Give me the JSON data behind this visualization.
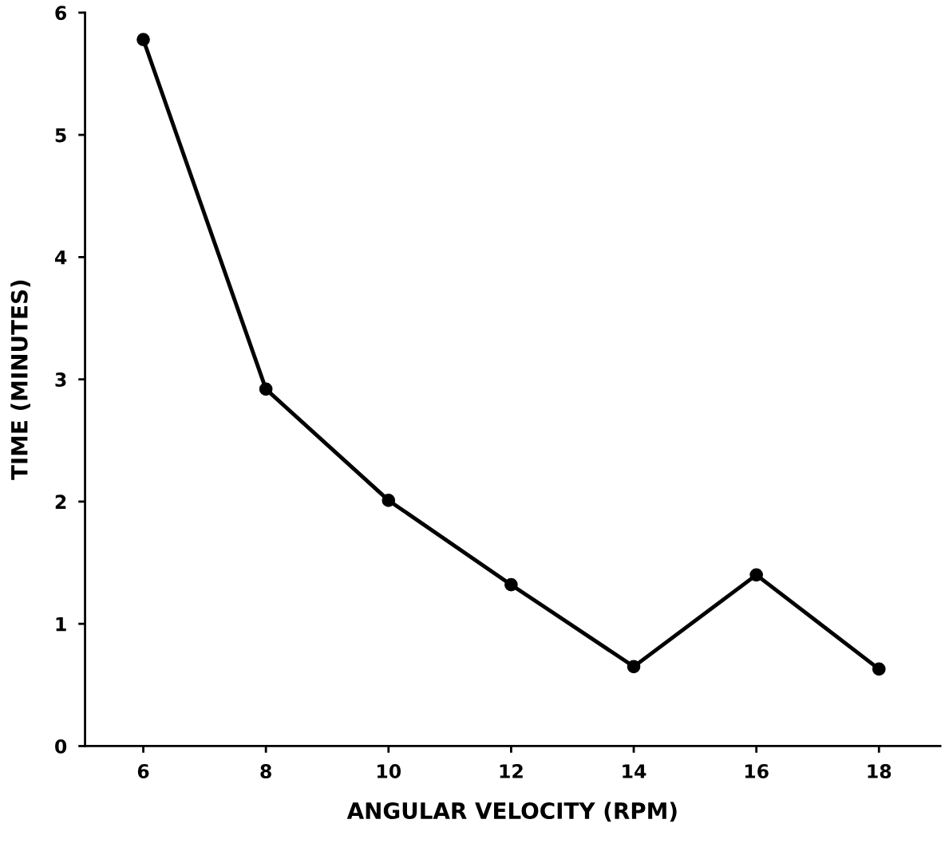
{
  "chart_data": {
    "type": "line",
    "xlabel": "ANGULAR VELOCITY (RPM)",
    "ylabel": "TIME (MINUTES)",
    "x": [
      6,
      8,
      10,
      12,
      14,
      16,
      18
    ],
    "series": [
      {
        "color": "#000000",
        "values": [
          5.78,
          2.92,
          2.01,
          1.32,
          0.65,
          1.4,
          0.63
        ]
      }
    ],
    "xlim": [
      5.05,
      19
    ],
    "xticks": [
      6,
      8,
      10,
      12,
      14,
      16,
      18
    ],
    "ylim": [
      0,
      6
    ],
    "yticks": [
      0,
      1,
      2,
      3,
      4,
      5,
      6
    ],
    "marker": "circle",
    "line_style": "solid",
    "grid": false,
    "legend": false
  }
}
